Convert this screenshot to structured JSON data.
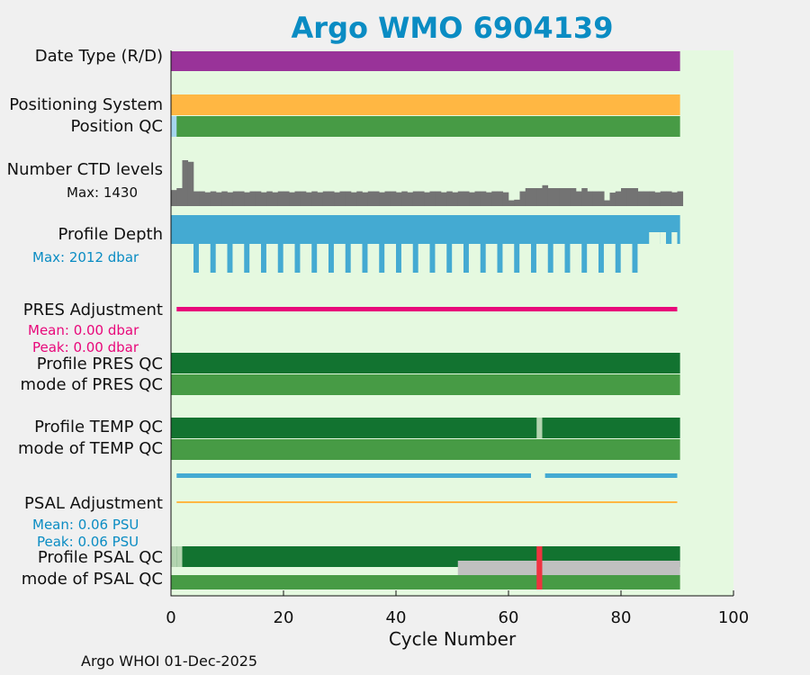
{
  "title": "Argo WMO 6904139",
  "footer": "Argo WHOI 01-Dec-2025",
  "colors": {
    "plot_bg": "#e5f9e0",
    "date_type": "#993399",
    "positioning": "#ffb743",
    "qc_good": "#479b45",
    "qc_dark": "#127330",
    "qc_light_gray": "#b3d4b0",
    "ctd_levels": "#737373",
    "profile_depth": "#44aad2",
    "pres_adjust": "#e8087a",
    "psal_adjust": "#ffb743",
    "psal_bar": "#44aad2",
    "qc_bad": "#ef3340",
    "gray_band": "#c0c0c0",
    "position_light": "#a6d6ee",
    "text_pres": "#e8087a",
    "text_blue": "#0a8cc3"
  },
  "rows": {
    "date_type": "Date Type (R/D)",
    "positioning_system": "Positioning System",
    "position_qc": "Position QC",
    "number_ctd_levels": "Number CTD levels",
    "profile_depth": "Profile Depth",
    "pres_adjustment": "PRES Adjustment",
    "profile_pres_qc": "Profile PRES QC",
    "mode_pres_qc": "mode of PRES QC",
    "profile_temp_qc": "Profile TEMP QC",
    "mode_temp_qc": "mode of TEMP QC",
    "psal_adjustment": "PSAL Adjustment",
    "profile_psal_qc": "Profile PSAL QC",
    "mode_psal_qc": "mode of PSAL QC"
  },
  "sublabels": {
    "ctd_max": "Max: 1430",
    "depth_max": "Max: 2012 dbar",
    "pres_mean": "Mean: 0.00 dbar",
    "pres_peak": "Peak: 0.00 dbar",
    "psal_mean": "Mean: 0.06 PSU",
    "psal_peak": "Peak: 0.06 PSU"
  },
  "chart_data": {
    "type": "bar",
    "xlabel": "Cycle Number",
    "xlim": [
      0,
      100
    ],
    "xticks": [
      0,
      20,
      40,
      60,
      80,
      100
    ],
    "last_cycle": 90,
    "ctd_levels_max": 1430,
    "ctd_levels": [
      500,
      560,
      1430,
      1380,
      460,
      460,
      430,
      460,
      430,
      460,
      430,
      460,
      460,
      430,
      460,
      460,
      430,
      460,
      430,
      460,
      460,
      430,
      460,
      460,
      430,
      460,
      430,
      460,
      460,
      430,
      460,
      460,
      430,
      460,
      430,
      460,
      460,
      430,
      460,
      460,
      430,
      460,
      430,
      460,
      460,
      430,
      460,
      460,
      430,
      460,
      430,
      460,
      460,
      430,
      460,
      460,
      430,
      460,
      460,
      430,
      180,
      200,
      460,
      560,
      560,
      560,
      650,
      560,
      560,
      560,
      560,
      560,
      460,
      560,
      460,
      460,
      460,
      180,
      420,
      460,
      560,
      560,
      560,
      460,
      460,
      460,
      430,
      460,
      460,
      430,
      460
    ],
    "profile_depth_max_dbar": 2012,
    "deep_profile_cycles": [
      4,
      7,
      10,
      13,
      16,
      19,
      22,
      25,
      28,
      31,
      34,
      37,
      40,
      43,
      46,
      49,
      52,
      55,
      58,
      61,
      64,
      67,
      70,
      73,
      76,
      79,
      82
    ],
    "gap_profile_cycles": [
      85,
      86,
      87,
      89
    ],
    "pres_adjustment_mean_dbar": 0.0,
    "pres_adjustment_peak_dbar": 0.0,
    "psal_adjustment_mean_psu": 0.06,
    "psal_adjustment_peak_psu": 0.06,
    "temp_qc_flag_cycle": 65,
    "psal_qc_bad_cycle": 65,
    "psal_qc_light_cycles": [
      0,
      1
    ],
    "psal_mode_gray_from_cycle": 51,
    "psal_bar_gaps": [
      [
        64,
        66.5
      ]
    ]
  }
}
